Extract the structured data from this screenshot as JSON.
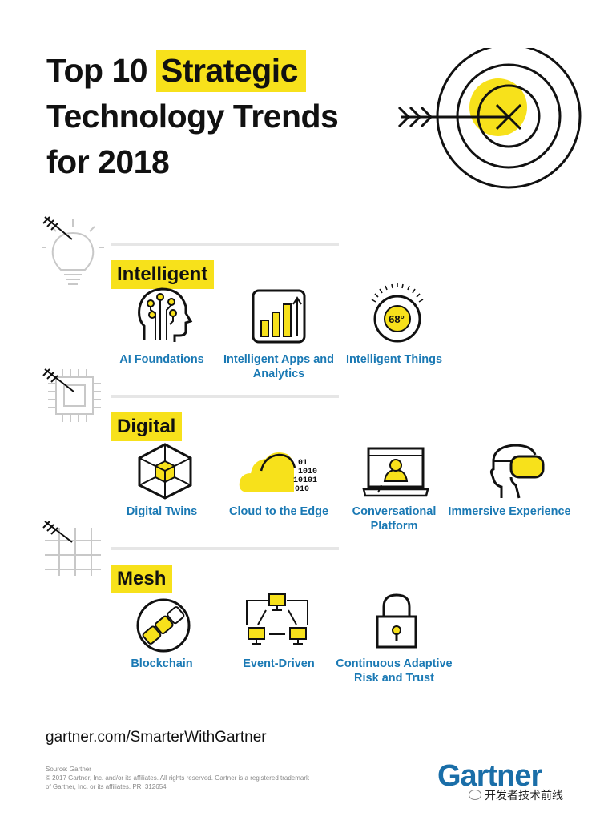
{
  "title": {
    "line1_pre": "Top 10",
    "line1_highlight": "Strategic",
    "line2": "Technology Trends",
    "line3": "for 2018"
  },
  "sections": [
    {
      "name": "Intelligent",
      "items": [
        {
          "label": "AI Foundations",
          "icon": "ai-head-icon"
        },
        {
          "label": "Intelligent Apps and Analytics",
          "icon": "bar-chart-icon"
        },
        {
          "label": "Intelligent Things",
          "icon": "thermostat-icon",
          "dial_value": "68°"
        }
      ]
    },
    {
      "name": "Digital",
      "items": [
        {
          "label": "Digital Twins",
          "icon": "cube-icon"
        },
        {
          "label": "Cloud to the Edge",
          "icon": "cloud-binary-icon",
          "binary": [
            "01",
            "1010",
            "10101",
            "010"
          ]
        },
        {
          "label": "Conversational Platform",
          "icon": "monitor-person-icon"
        },
        {
          "label": "Immersive Experience",
          "icon": "vr-headset-icon"
        }
      ]
    },
    {
      "name": "Mesh",
      "items": [
        {
          "label": "Blockchain",
          "icon": "blockchain-icon"
        },
        {
          "label": "Event-Driven",
          "icon": "network-icon"
        },
        {
          "label": "Continuous Adaptive Risk and Trust",
          "icon": "padlock-icon"
        }
      ]
    }
  ],
  "footer": {
    "url": "gartner.com/SmarterWithGartner",
    "source": "Source: Gartner",
    "copyright1": "© 2017 Gartner, Inc. and/or its affiliates. All rights reserved. Gartner is a registered trademark",
    "copyright2": "of Gartner, Inc. or its affiliates. PR_312654",
    "logo": "Gartner",
    "watermark": "开发者技术前线"
  },
  "colors": {
    "accent": "#f7e11b",
    "label": "#1a79b4",
    "logo": "#1a6ea8"
  }
}
